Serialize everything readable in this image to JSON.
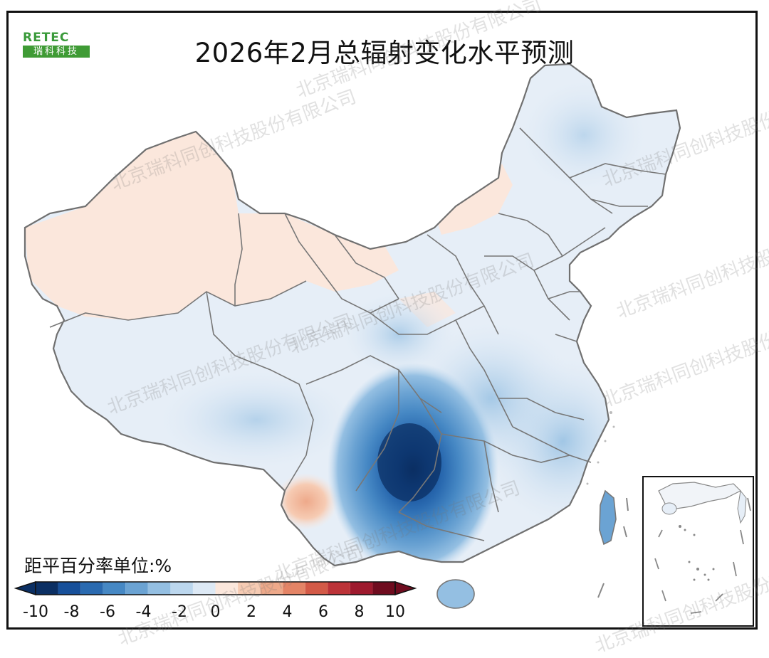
{
  "title": "2026年2月总辐射变化水平预测",
  "logo": {
    "top": "RETEC",
    "bottom": "瑞科科技"
  },
  "legend": {
    "title": "距平百分率单位:%",
    "ticks": [
      "-10",
      "-8",
      "-6",
      "-4",
      "-2",
      "0",
      "2",
      "4",
      "6",
      "8",
      "10"
    ],
    "colors": [
      "#0b2f63",
      "#17509a",
      "#2a6ab0",
      "#4688c4",
      "#6ba3d3",
      "#94bfe2",
      "#bcd7ee",
      "#dde9f5",
      "#fbe7dc",
      "#f6cbb3",
      "#eea98a",
      "#e48466",
      "#d35a47",
      "#bc3338",
      "#9e1a2e",
      "#6f0c1f"
    ]
  },
  "watermark": "北京瑞科同创科技股份有限公司",
  "map": {
    "region": "China",
    "inset": "South China Sea islands",
    "anomaly_min_center": "Guizhou / Guangxi region, below -10%",
    "positive_anomaly_areas": [
      "Xinjiang",
      "Inner Mongolia west",
      "Yunnan southwest",
      "Qinghai north"
    ]
  }
}
